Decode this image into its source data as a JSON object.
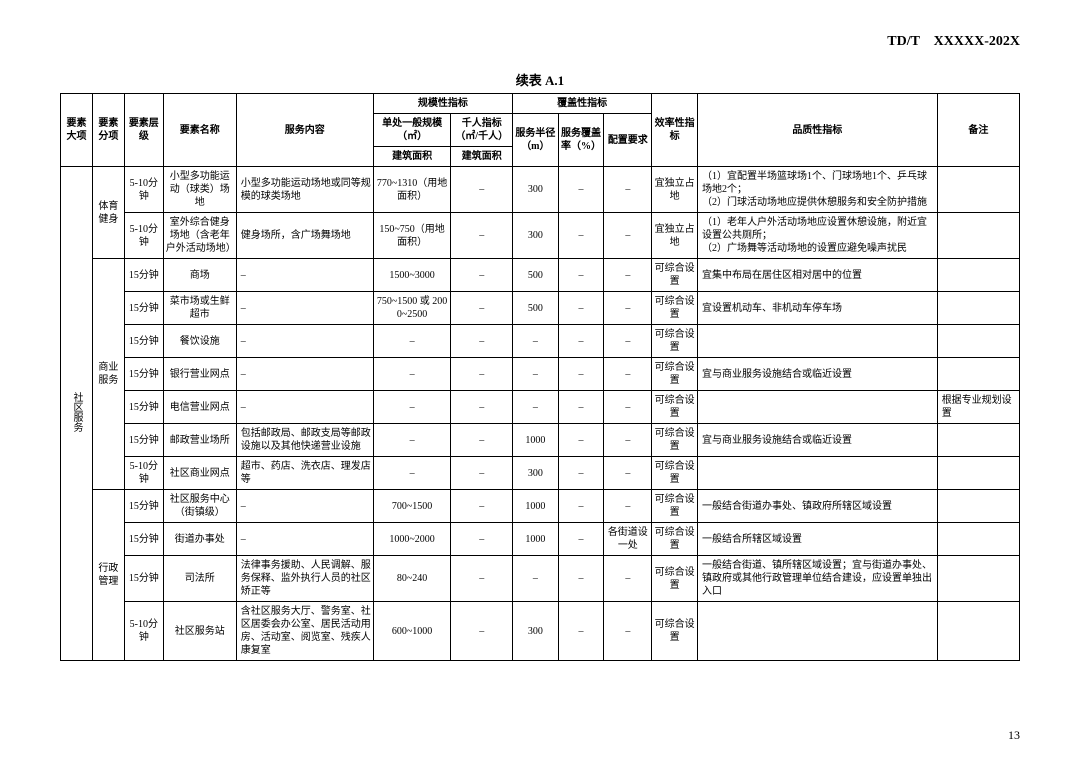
{
  "doc_code": "TD/T　XXXXX-202X",
  "table_title": "续表 A.1",
  "page_num": "13",
  "head": {
    "c1": "要素大项",
    "c2": "要素分项",
    "c3": "要素层级",
    "c4": "要素名称",
    "c5": "服务内容",
    "scale_group": "规模性指标",
    "scale_a_top": "单处一般规模（㎡）",
    "scale_a_bot": "建筑面积",
    "scale_b_top": "千人指标（㎡/千人）",
    "scale_b_bot": "建筑面积",
    "cover_group": "覆盖性指标",
    "cover_a": "服务半径（m）",
    "cover_b": "服务覆盖率（%）",
    "config": "配置要求",
    "eff": "效率性指标",
    "quality": "品质性指标",
    "remark": "备注"
  },
  "cat_major": "社区服务",
  "cat_sport": "体育健身",
  "cat_biz": "商业服务",
  "cat_admin": "行政管理",
  "rows": [
    {
      "lvl": "5-10分钟",
      "name": "小型多功能运动（球类）场地",
      "svc": "小型多功能运动场地或同等规模的球类场地",
      "scale_a": "770~1310（用地面积）",
      "scale_b": "–",
      "radius": "300",
      "cover": "–",
      "cfg": "–",
      "eff": "宜独立占地",
      "quality": "（1）宜配置半场篮球场1个、门球场地1个、乒乓球场地2个；\n（2）门球活动场地应提供休憩服务和安全防护措施",
      "remark": ""
    },
    {
      "lvl": "5-10分钟",
      "name": "室外综合健身场地（含老年户外活动场地）",
      "svc": "健身场所，含广场舞场地",
      "scale_a": "150~750（用地面积）",
      "scale_b": "–",
      "radius": "300",
      "cover": "–",
      "cfg": "–",
      "eff": "宜独立占地",
      "quality": "（1）老年人户外活动场地应设置休憩设施，附近宜设置公共厕所；\n（2）广场舞等活动场地的设置应避免噪声扰民",
      "remark": ""
    },
    {
      "lvl": "15分钟",
      "name": "商场",
      "svc": "–",
      "scale_a": "1500~3000",
      "scale_b": "–",
      "radius": "500",
      "cover": "–",
      "cfg": "–",
      "eff": "可综合设置",
      "quality": "宜集中布局在居住区相对居中的位置",
      "remark": ""
    },
    {
      "lvl": "15分钟",
      "name": "菜市场或生鲜超市",
      "svc": "–",
      "scale_a": "750~1500 或 2000~2500",
      "scale_b": "–",
      "radius": "500",
      "cover": "–",
      "cfg": "–",
      "eff": "可综合设置",
      "quality": "宜设置机动车、非机动车停车场",
      "remark": ""
    },
    {
      "lvl": "15分钟",
      "name": "餐饮设施",
      "svc": "–",
      "scale_a": "–",
      "scale_b": "–",
      "radius": "–",
      "cover": "–",
      "cfg": "–",
      "eff": "可综合设置",
      "quality": "",
      "remark": ""
    },
    {
      "lvl": "15分钟",
      "name": "银行营业网点",
      "svc": "–",
      "scale_a": "–",
      "scale_b": "–",
      "radius": "–",
      "cover": "–",
      "cfg": "–",
      "eff": "可综合设置",
      "quality": "宜与商业服务设施结合或临近设置",
      "remark": ""
    },
    {
      "lvl": "15分钟",
      "name": "电信营业网点",
      "svc": "–",
      "scale_a": "–",
      "scale_b": "–",
      "radius": "–",
      "cover": "–",
      "cfg": "–",
      "eff": "可综合设置",
      "quality": "",
      "remark": "根据专业规划设置"
    },
    {
      "lvl": "15分钟",
      "name": "邮政营业场所",
      "svc": "包括邮政局、邮政支局等邮政设施以及其他快递营业设施",
      "scale_a": "–",
      "scale_b": "–",
      "radius": "1000",
      "cover": "–",
      "cfg": "–",
      "eff": "可综合设置",
      "quality": "宜与商业服务设施结合或临近设置",
      "remark": ""
    },
    {
      "lvl": "5-10分钟",
      "name": "社区商业网点",
      "svc": "超市、药店、洗衣店、理发店等",
      "scale_a": "–",
      "scale_b": "–",
      "radius": "300",
      "cover": "–",
      "cfg": "–",
      "eff": "可综合设置",
      "quality": "",
      "remark": ""
    },
    {
      "lvl": "15分钟",
      "name": "社区服务中心（街镇级）",
      "svc": "–",
      "scale_a": "700~1500",
      "scale_b": "–",
      "radius": "1000",
      "cover": "–",
      "cfg": "–",
      "eff": "可综合设置",
      "quality": "一般结合街道办事处、镇政府所辖区域设置",
      "remark": ""
    },
    {
      "lvl": "15分钟",
      "name": "街道办事处",
      "svc": "–",
      "scale_a": "1000~2000",
      "scale_b": "–",
      "radius": "1000",
      "cover": "–",
      "cfg": "各街道设一处",
      "eff": "可综合设置",
      "quality": "一般结合所辖区域设置",
      "remark": ""
    },
    {
      "lvl": "15分钟",
      "name": "司法所",
      "svc": "法律事务援助、人民调解、服务保释、监外执行人员的社区矫正等",
      "scale_a": "80~240",
      "scale_b": "–",
      "radius": "–",
      "cover": "–",
      "cfg": "–",
      "eff": "可综合设置",
      "quality": "一般结合街道、镇所辖区域设置；宜与街道办事处、镇政府或其他行政管理单位结合建设，应设置单独出入口",
      "remark": ""
    },
    {
      "lvl": "5-10分钟",
      "name": "社区服务站",
      "svc": "含社区服务大厅、警务室、社区居委会办公室、居民活动用房、活动室、阅览室、残疾人康复室",
      "scale_a": "600~1000",
      "scale_b": "–",
      "radius": "300",
      "cover": "–",
      "cfg": "–",
      "eff": "可综合设置",
      "quality": "",
      "remark": ""
    }
  ]
}
